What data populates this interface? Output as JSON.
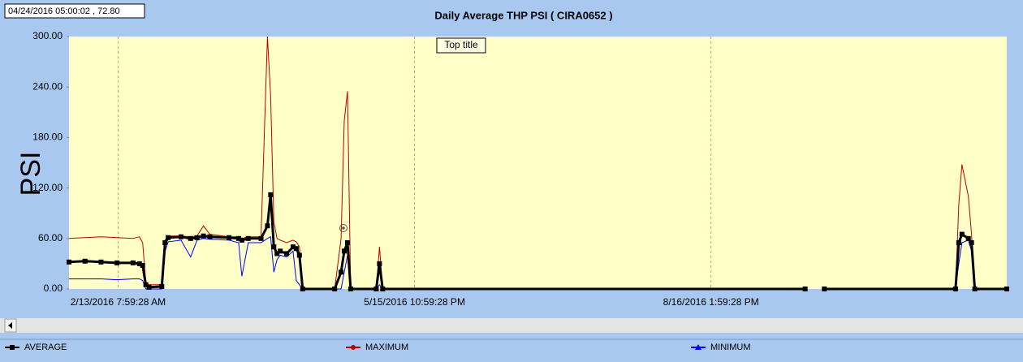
{
  "chart_data": {
    "type": "line",
    "title": "Daily Average  THP PSI   ( CIRA0652 )",
    "y_label": "PSI",
    "annotations": [
      "04/24/2016 05:00:02 , 72.80",
      "Top title"
    ],
    "x": [
      "2016-01-29",
      "2016-02-03",
      "2016-02-08",
      "2016-02-13",
      "2016-02-18",
      "2016-02-20",
      "2016-02-21",
      "2016-02-22",
      "2016-02-23",
      "2016-02-27",
      "2016-02-28",
      "2016-02-29",
      "2016-03-04",
      "2016-03-07",
      "2016-03-09",
      "2016-03-11",
      "2016-03-13",
      "2016-03-19",
      "2016-03-22",
      "2016-03-23",
      "2016-03-25",
      "2016-03-29",
      "2016-03-31",
      "2016-04-01",
      "2016-04-02",
      "2016-04-03",
      "2016-04-04",
      "2016-04-06",
      "2016-04-08",
      "2016-04-09",
      "2016-04-10",
      "2016-04-11",
      "2016-04-21",
      "2016-04-23",
      "2016-04-24",
      "2016-04-25",
      "2016-04-26",
      "2016-05-04",
      "2016-05-05",
      "2016-05-06",
      "2016-09-15",
      "2016-09-18",
      "2016-09-21",
      "2016-11-01",
      "2016-11-02",
      "2016-11-03",
      "2016-11-05",
      "2016-11-06",
      "2016-11-07",
      "2016-11-17"
    ],
    "series": [
      {
        "name": "AVERAGE",
        "color": "#000000",
        "marker": "square",
        "values": [
          32,
          33,
          32,
          31,
          31,
          30,
          28,
          5,
          2,
          3,
          55,
          61,
          62,
          60,
          61,
          63,
          62,
          61,
          60,
          58,
          60,
          60,
          75,
          112,
          50,
          42,
          45,
          42,
          50,
          48,
          40,
          0,
          0,
          20,
          45,
          55,
          0,
          0,
          30,
          0,
          0,
          null,
          0,
          0,
          55,
          65,
          60,
          55,
          0,
          0
        ]
      },
      {
        "name": "MAXIMUM",
        "color": "#c00000",
        "marker": "circle",
        "values": [
          60,
          61,
          62,
          61,
          60,
          62,
          55,
          8,
          5,
          5,
          58,
          63,
          63,
          62,
          63,
          75,
          65,
          62,
          62,
          60,
          62,
          62,
          300,
          230,
          80,
          60,
          58,
          55,
          58,
          56,
          50,
          0,
          0,
          60,
          200,
          235,
          0,
          0,
          50,
          0,
          0,
          null,
          0,
          0,
          100,
          148,
          110,
          65,
          0,
          0
        ]
      },
      {
        "name": "MINIMUM",
        "color": "#0000ff",
        "marker": "triangle",
        "values": [
          12,
          12,
          12,
          11,
          12,
          12,
          10,
          0,
          0,
          0,
          45,
          56,
          58,
          38,
          58,
          60,
          59,
          58,
          55,
          15,
          55,
          55,
          60,
          62,
          20,
          35,
          40,
          38,
          45,
          10,
          5,
          0,
          0,
          0,
          20,
          40,
          0,
          0,
          5,
          0,
          0,
          null,
          0,
          0,
          30,
          55,
          58,
          45,
          0,
          0
        ]
      }
    ],
    "xlim": [
      "2016-01-29",
      "2016-11-17"
    ],
    "xticks": [
      {
        "value": "2016-02-13T07:59:28",
        "label": "2/13/2016 7:59:28 AM"
      },
      {
        "value": "2016-05-15T22:59:28",
        "label": "5/15/2016 10:59:28 PM"
      },
      {
        "value": "2016-08-16T13:59:28",
        "label": "8/16/2016 1:59:28 PM"
      }
    ],
    "ylim": [
      0,
      300
    ],
    "yticks": [
      {
        "value": 0,
        "label": "0.00"
      },
      {
        "value": 60,
        "label": "60.00"
      },
      {
        "value": 120,
        "label": "120.00"
      },
      {
        "value": 180,
        "label": "180.00"
      },
      {
        "value": 240,
        "label": "240.00"
      },
      {
        "value": 300,
        "label": "300.00"
      }
    ],
    "grid": "x",
    "legend": "bottom"
  }
}
